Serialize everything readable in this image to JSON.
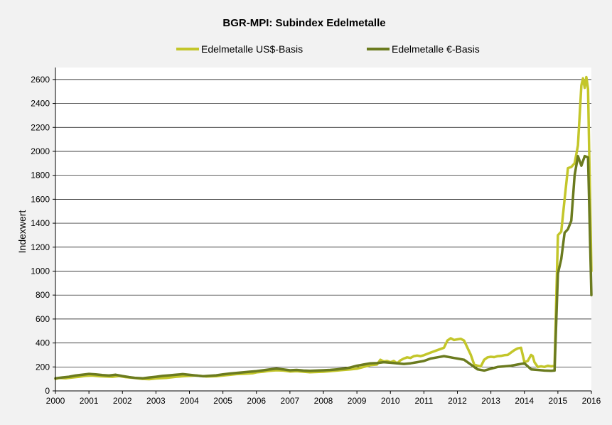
{
  "chart_data": {
    "type": "line",
    "title": "BGR-MPI:  Subindex Edelmetalle",
    "xlabel": "",
    "ylabel": "Indexwert",
    "xlim": [
      2000,
      2016
    ],
    "ylim": [
      0,
      2700
    ],
    "x_ticks": [
      "2000",
      "2001",
      "2002",
      "2003",
      "2004",
      "2005",
      "2006",
      "2007",
      "2008",
      "2009",
      "2010",
      "2011",
      "2012",
      "2013",
      "2014",
      "2015",
      "2016"
    ],
    "y_ticks": [
      "0",
      "200",
      "400",
      "600",
      "800",
      "1000",
      "1200",
      "1400",
      "1600",
      "1800",
      "2000",
      "2200",
      "2400",
      "2600"
    ],
    "grid": true,
    "legend_position": "top",
    "series": [
      {
        "name": "Edelmetalle US$-Basis",
        "color": "#c3c62a",
        "points": [
          [
            2000.0,
            100
          ],
          [
            2000.1,
            108
          ],
          [
            2000.3,
            105
          ],
          [
            2000.5,
            112
          ],
          [
            2000.7,
            118
          ],
          [
            2000.9,
            125
          ],
          [
            2001.1,
            128
          ],
          [
            2001.3,
            122
          ],
          [
            2001.5,
            120
          ],
          [
            2001.7,
            118
          ],
          [
            2001.9,
            124
          ],
          [
            2002.1,
            115
          ],
          [
            2002.3,
            110
          ],
          [
            2002.6,
            100
          ],
          [
            2002.8,
            98
          ],
          [
            2003.0,
            104
          ],
          [
            2003.3,
            108
          ],
          [
            2003.6,
            118
          ],
          [
            2003.9,
            124
          ],
          [
            2004.2,
            128
          ],
          [
            2004.5,
            120
          ],
          [
            2004.8,
            122
          ],
          [
            2005.0,
            128
          ],
          [
            2005.2,
            134
          ],
          [
            2005.4,
            140
          ],
          [
            2005.7,
            144
          ],
          [
            2005.9,
            148
          ],
          [
            2006.0,
            155
          ],
          [
            2006.2,
            160
          ],
          [
            2006.4,
            168
          ],
          [
            2006.6,
            172
          ],
          [
            2006.8,
            170
          ],
          [
            2007.0,
            162
          ],
          [
            2007.2,
            165
          ],
          [
            2007.4,
            160
          ],
          [
            2007.6,
            156
          ],
          [
            2007.8,
            158
          ],
          [
            2008.0,
            160
          ],
          [
            2008.2,
            165
          ],
          [
            2008.4,
            170
          ],
          [
            2008.6,
            175
          ],
          [
            2008.8,
            180
          ],
          [
            2009.0,
            185
          ],
          [
            2009.2,
            200
          ],
          [
            2009.4,
            215
          ],
          [
            2009.6,
            220
          ],
          [
            2009.7,
            260
          ],
          [
            2009.8,
            245
          ],
          [
            2009.9,
            250
          ],
          [
            2010.0,
            240
          ],
          [
            2010.1,
            250
          ],
          [
            2010.2,
            230
          ],
          [
            2010.3,
            255
          ],
          [
            2010.4,
            270
          ],
          [
            2010.5,
            280
          ],
          [
            2010.6,
            275
          ],
          [
            2010.7,
            290
          ],
          [
            2010.8,
            295
          ],
          [
            2010.9,
            290
          ],
          [
            2011.0,
            298
          ],
          [
            2011.2,
            320
          ],
          [
            2011.4,
            340
          ],
          [
            2011.6,
            360
          ],
          [
            2011.7,
            420
          ],
          [
            2011.8,
            440
          ],
          [
            2011.9,
            425
          ],
          [
            2012.0,
            430
          ],
          [
            2012.1,
            435
          ],
          [
            2012.2,
            420
          ],
          [
            2012.3,
            360
          ],
          [
            2012.4,
            300
          ],
          [
            2012.5,
            220
          ],
          [
            2012.6,
            210
          ],
          [
            2012.7,
            205
          ],
          [
            2012.8,
            260
          ],
          [
            2012.9,
            280
          ],
          [
            2013.0,
            285
          ],
          [
            2013.1,
            282
          ],
          [
            2013.2,
            290
          ],
          [
            2013.3,
            292
          ],
          [
            2013.4,
            298
          ],
          [
            2013.5,
            300
          ],
          [
            2013.6,
            320
          ],
          [
            2013.7,
            340
          ],
          [
            2013.8,
            355
          ],
          [
            2013.9,
            360
          ],
          [
            2014.0,
            240
          ],
          [
            2014.1,
            250
          ],
          [
            2014.2,
            300
          ],
          [
            2014.25,
            290
          ],
          [
            2014.3,
            240
          ],
          [
            2014.4,
            200
          ],
          [
            2014.5,
            205
          ],
          [
            2014.6,
            200
          ],
          [
            2014.7,
            210
          ],
          [
            2014.8,
            205
          ],
          [
            2014.9,
            208
          ],
          [
            2015.0,
            1300
          ],
          [
            2015.1,
            1330
          ],
          [
            2015.2,
            1600
          ],
          [
            2015.3,
            1860
          ],
          [
            2015.4,
            1870
          ],
          [
            2015.5,
            1900
          ],
          [
            2015.6,
            2050
          ],
          [
            2015.7,
            2550
          ],
          [
            2015.75,
            2610
          ],
          [
            2015.8,
            2530
          ],
          [
            2015.85,
            2620
          ],
          [
            2015.9,
            2520
          ],
          [
            2016.0,
            1000
          ]
        ]
      },
      {
        "name": "Edelmetalle €-Basis",
        "color": "#6b7b1f",
        "points": [
          [
            2000.0,
            105
          ],
          [
            2000.2,
            112
          ],
          [
            2000.4,
            118
          ],
          [
            2000.6,
            128
          ],
          [
            2000.8,
            135
          ],
          [
            2001.0,
            142
          ],
          [
            2001.2,
            138
          ],
          [
            2001.4,
            132
          ],
          [
            2001.6,
            128
          ],
          [
            2001.8,
            135
          ],
          [
            2002.0,
            124
          ],
          [
            2002.2,
            115
          ],
          [
            2002.4,
            108
          ],
          [
            2002.6,
            105
          ],
          [
            2002.8,
            112
          ],
          [
            2003.0,
            118
          ],
          [
            2003.2,
            125
          ],
          [
            2003.4,
            130
          ],
          [
            2003.6,
            135
          ],
          [
            2003.8,
            140
          ],
          [
            2004.0,
            134
          ],
          [
            2004.2,
            128
          ],
          [
            2004.4,
            122
          ],
          [
            2004.6,
            126
          ],
          [
            2004.8,
            130
          ],
          [
            2005.0,
            138
          ],
          [
            2005.2,
            145
          ],
          [
            2005.4,
            150
          ],
          [
            2005.6,
            155
          ],
          [
            2005.8,
            160
          ],
          [
            2006.0,
            165
          ],
          [
            2006.2,
            172
          ],
          [
            2006.4,
            180
          ],
          [
            2006.6,
            185
          ],
          [
            2006.8,
            180
          ],
          [
            2007.0,
            172
          ],
          [
            2007.2,
            175
          ],
          [
            2007.4,
            170
          ],
          [
            2007.6,
            168
          ],
          [
            2007.8,
            170
          ],
          [
            2008.0,
            172
          ],
          [
            2008.2,
            175
          ],
          [
            2008.4,
            180
          ],
          [
            2008.6,
            185
          ],
          [
            2008.8,
            195
          ],
          [
            2009.0,
            210
          ],
          [
            2009.2,
            220
          ],
          [
            2009.4,
            230
          ],
          [
            2009.6,
            232
          ],
          [
            2009.8,
            240
          ],
          [
            2010.0,
            235
          ],
          [
            2010.2,
            230
          ],
          [
            2010.4,
            225
          ],
          [
            2010.6,
            230
          ],
          [
            2010.8,
            240
          ],
          [
            2011.0,
            250
          ],
          [
            2011.2,
            270
          ],
          [
            2011.4,
            280
          ],
          [
            2011.6,
            290
          ],
          [
            2011.7,
            285
          ],
          [
            2011.8,
            280
          ],
          [
            2011.9,
            275
          ],
          [
            2012.0,
            270
          ],
          [
            2012.2,
            260
          ],
          [
            2012.4,
            220
          ],
          [
            2012.6,
            180
          ],
          [
            2012.8,
            170
          ],
          [
            2013.0,
            185
          ],
          [
            2013.2,
            200
          ],
          [
            2013.4,
            205
          ],
          [
            2013.6,
            210
          ],
          [
            2013.8,
            220
          ],
          [
            2014.0,
            230
          ],
          [
            2014.2,
            180
          ],
          [
            2014.4,
            175
          ],
          [
            2014.6,
            170
          ],
          [
            2014.8,
            168
          ],
          [
            2014.9,
            170
          ],
          [
            2015.0,
            980
          ],
          [
            2015.1,
            1100
          ],
          [
            2015.2,
            1320
          ],
          [
            2015.3,
            1350
          ],
          [
            2015.4,
            1420
          ],
          [
            2015.5,
            1800
          ],
          [
            2015.6,
            1960
          ],
          [
            2015.7,
            1880
          ],
          [
            2015.8,
            1960
          ],
          [
            2015.9,
            1950
          ],
          [
            2016.0,
            800
          ]
        ]
      }
    ]
  }
}
